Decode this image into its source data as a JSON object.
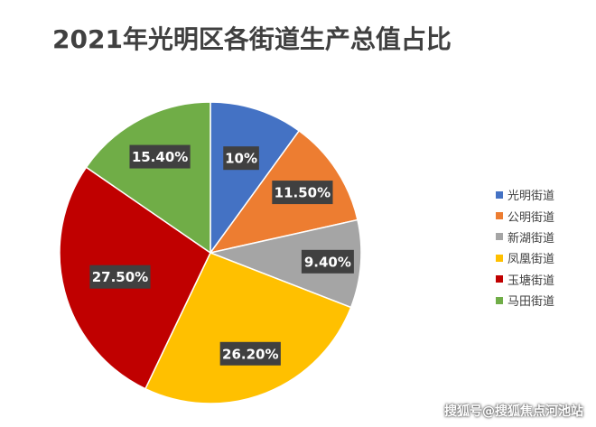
{
  "chart_data": {
    "type": "pie",
    "title": "2021年光明区各街道生产总值占比",
    "categories": [
      "光明街道",
      "公明街道",
      "新湖街道",
      "凤凰街道",
      "玉塘街道",
      "马田街道"
    ],
    "values": [
      10,
      11.5,
      9.4,
      26.2,
      27.5,
      15.4
    ],
    "data_labels": [
      "10%",
      "11.50%",
      "9.40%",
      "26.20%",
      "27.50%",
      "15.40%"
    ],
    "colors": [
      "#4472C4",
      "#ED7D31",
      "#A5A5A5",
      "#FFC000",
      "#C00000",
      "#70AD47"
    ],
    "legend_position": "right"
  },
  "watermark": "搜狐号@搜狐焦点河池站"
}
